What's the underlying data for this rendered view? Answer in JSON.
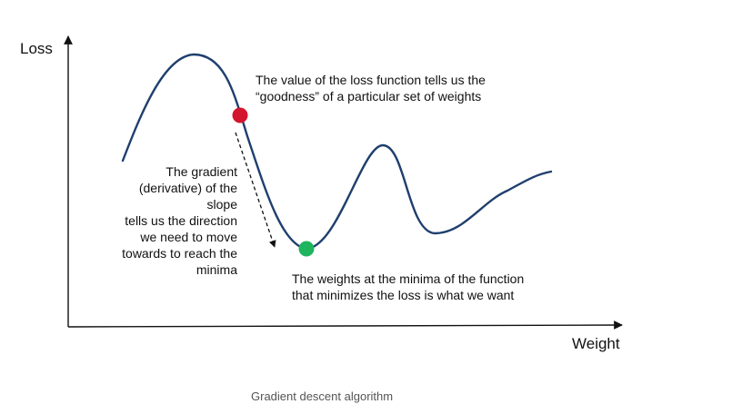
{
  "axes": {
    "y_label": "Loss",
    "x_label": "Weight"
  },
  "annotations": {
    "loss_value": [
      "The value of the loss function tells us the",
      "“goodness” of a particular set of weights"
    ],
    "gradient": [
      "The gradient",
      "(derivative) of the",
      "slope",
      "tells us the direction",
      "we need to move",
      "towards to reach the",
      "minima"
    ],
    "minima": [
      "The weights at the minima of the function",
      "that minimizes the loss is what we want"
    ]
  },
  "caption": "Gradient descent algorithm",
  "colors": {
    "curve": "#1f3f6e",
    "current_point": "#d3152d",
    "minimum_point": "#1fb45e",
    "axis": "#111111",
    "arrow": "#111111"
  }
}
